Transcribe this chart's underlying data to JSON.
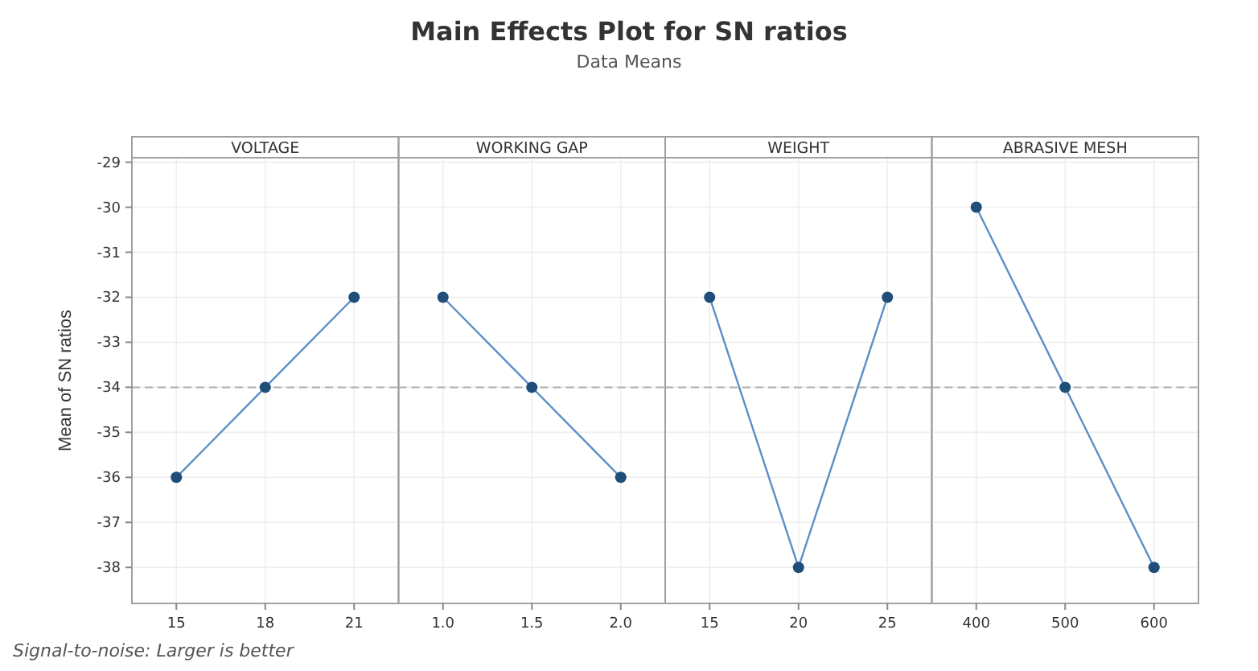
{
  "chart_data": [
    {
      "type": "other",
      "title": "Main Effects Plot for SN ratios",
      "subtitle": "Data Means",
      "annotations": [
        "Signal-to-noise: Larger is better"
      ]
    },
    {
      "type": "line",
      "title": "VOLTAGE",
      "ylabel": "Mean of SN ratios",
      "categories": [
        "15",
        "18",
        "21"
      ],
      "values": [
        -36,
        -34,
        -32
      ],
      "color": "#1f4e79",
      "marker": "circle",
      "ylim": [
        -38.8,
        -28.9
      ],
      "yticks": [
        -29,
        -30,
        -31,
        -32,
        -33,
        -34,
        -35,
        -36,
        -37,
        -38
      ],
      "grid": true,
      "ref_lines": [
        {
          "axis": "y",
          "value": -34,
          "color": "#b0b0b0",
          "line_style": "dashed"
        }
      ]
    },
    {
      "type": "line",
      "title": "WORKING GAP",
      "categories": [
        "1.0",
        "1.5",
        "2.0"
      ],
      "values": [
        -32,
        -34,
        -36
      ],
      "color": "#1f4e79",
      "marker": "circle",
      "ylim": [
        -38.8,
        -28.9
      ],
      "yticks": [
        -29,
        -30,
        -31,
        -32,
        -33,
        -34,
        -35,
        -36,
        -37,
        -38
      ],
      "tick_labels": "x",
      "grid": true,
      "ref_lines": [
        {
          "axis": "y",
          "value": -34,
          "color": "#b0b0b0",
          "line_style": "dashed"
        }
      ]
    },
    {
      "type": "line",
      "title": "WEIGHT",
      "categories": [
        "15",
        "20",
        "25"
      ],
      "values": [
        -32,
        -38,
        -32
      ],
      "color": "#1f4e79",
      "marker": "circle",
      "ylim": [
        -38.8,
        -28.9
      ],
      "yticks": [
        -29,
        -30,
        -31,
        -32,
        -33,
        -34,
        -35,
        -36,
        -37,
        -38
      ],
      "tick_labels": "x",
      "grid": true,
      "ref_lines": [
        {
          "axis": "y",
          "value": -34,
          "color": "#b0b0b0",
          "line_style": "dashed"
        }
      ]
    },
    {
      "type": "line",
      "title": "ABRASIVE MESH",
      "categories": [
        "400",
        "500",
        "600"
      ],
      "values": [
        -30,
        -34,
        -38
      ],
      "color": "#1f4e79",
      "marker": "circle",
      "ylim": [
        -38.8,
        -28.9
      ],
      "yticks": [
        -29,
        -30,
        -31,
        -32,
        -33,
        -34,
        -35,
        -36,
        -37,
        -38
      ],
      "tick_labels": "x",
      "grid": true,
      "ref_lines": [
        {
          "axis": "y",
          "value": -34,
          "color": "#b0b0b0",
          "line_style": "dashed"
        }
      ]
    }
  ]
}
